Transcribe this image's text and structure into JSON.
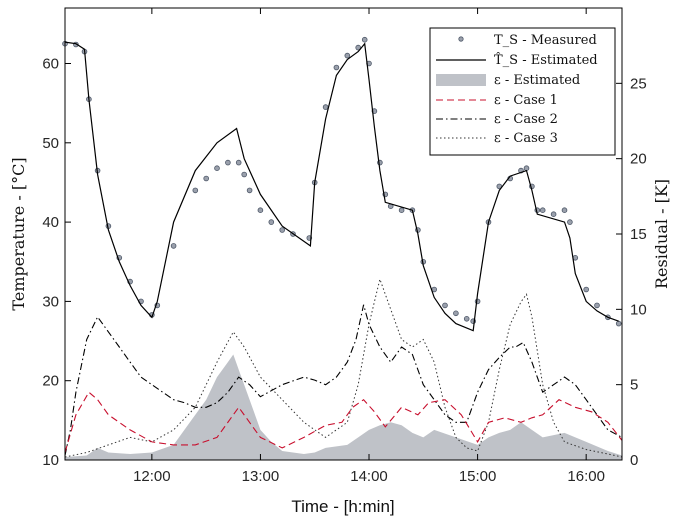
{
  "chart_data": {
    "type": "line",
    "xlabel": "Time - [h:min]",
    "ylabel_left": "Temperature - [°C]",
    "ylabel_right": "Residual - [K]",
    "x_unit": "hours",
    "xlim": [
      11.2,
      16.33
    ],
    "ylim_left": [
      10,
      67
    ],
    "ylim_right": [
      0,
      30
    ],
    "x_ticks": [
      {
        "value": 12,
        "label": "12:00"
      },
      {
        "value": 13,
        "label": "13:00"
      },
      {
        "value": 14,
        "label": "14:00"
      },
      {
        "value": 15,
        "label": "15:00"
      },
      {
        "value": 16,
        "label": "16:00"
      }
    ],
    "y_ticks_left": [
      10,
      20,
      30,
      40,
      50,
      60
    ],
    "y_ticks_right": [
      0,
      5,
      10,
      15,
      20,
      25
    ],
    "legend": [
      {
        "label": "T_S - Measured",
        "style": "dots"
      },
      {
        "label": "T̂_S - Estimated",
        "style": "solid"
      },
      {
        "label": "ε - Estimated",
        "style": "area"
      },
      {
        "label": "ε - Case 1",
        "style": "dashed-red"
      },
      {
        "label": "ε - Case 2",
        "style": "dashdot"
      },
      {
        "label": "ε - Case 3",
        "style": "dotted"
      }
    ],
    "series": [
      {
        "name": "T_S - Measured",
        "axis": "left",
        "x": [
          11.2,
          11.3,
          11.38,
          11.42,
          11.5,
          11.6,
          11.7,
          11.8,
          11.9,
          12.0,
          12.05,
          12.2,
          12.4,
          12.5,
          12.6,
          12.7,
          12.8,
          12.85,
          12.9,
          13.0,
          13.1,
          13.2,
          13.3,
          13.45,
          13.5,
          13.6,
          13.7,
          13.8,
          13.9,
          13.96,
          14.0,
          14.05,
          14.1,
          14.15,
          14.2,
          14.3,
          14.4,
          14.45,
          14.5,
          14.6,
          14.7,
          14.8,
          14.9,
          14.96,
          15.0,
          15.1,
          15.2,
          15.3,
          15.4,
          15.45,
          15.5,
          15.55,
          15.6,
          15.7,
          15.8,
          15.85,
          15.9,
          16.0,
          16.1,
          16.2,
          16.3
        ],
        "values": [
          62.5,
          62.4,
          61.5,
          55.5,
          46.5,
          39.5,
          35.5,
          32.5,
          30.0,
          28.3,
          29.5,
          37.0,
          44.0,
          45.5,
          46.8,
          47.5,
          47.5,
          46.0,
          44.0,
          41.5,
          40.0,
          39.0,
          38.5,
          38.0,
          45.0,
          54.5,
          59.5,
          61.0,
          62.0,
          63.0,
          60.0,
          54.0,
          47.5,
          43.5,
          42.0,
          41.5,
          41.5,
          39.0,
          35.0,
          31.5,
          29.5,
          28.5,
          27.8,
          27.5,
          30.0,
          40.0,
          44.5,
          45.5,
          46.5,
          46.8,
          44.5,
          41.5,
          41.5,
          41.0,
          41.5,
          40.0,
          35.5,
          31.5,
          29.5,
          28.0,
          27.2
        ]
      },
      {
        "name": "T̂_S - Estimated",
        "axis": "left",
        "x": [
          11.2,
          11.3,
          11.38,
          11.42,
          11.5,
          11.6,
          11.7,
          11.8,
          11.9,
          12.0,
          12.05,
          12.2,
          12.4,
          12.6,
          12.78,
          12.85,
          13.0,
          13.2,
          13.46,
          13.5,
          13.6,
          13.7,
          13.8,
          13.9,
          13.96,
          14.0,
          14.05,
          14.1,
          14.15,
          14.4,
          14.45,
          14.5,
          14.6,
          14.7,
          14.8,
          14.96,
          15.0,
          15.1,
          15.2,
          15.3,
          15.45,
          15.5,
          15.55,
          15.8,
          15.85,
          15.9,
          16.0,
          16.1,
          16.2,
          16.3
        ],
        "values": [
          62.7,
          62.5,
          61.8,
          55.5,
          46.0,
          39.0,
          35.0,
          32.0,
          29.5,
          28.0,
          30.0,
          40.0,
          46.5,
          50.0,
          51.8,
          48.0,
          43.5,
          39.5,
          37.0,
          45.0,
          53.0,
          58.5,
          60.5,
          61.5,
          62.5,
          58.0,
          52.0,
          46.5,
          42.5,
          41.5,
          38.5,
          34.5,
          30.5,
          28.5,
          27.2,
          26.3,
          31.0,
          40.0,
          44.0,
          45.8,
          46.5,
          44.0,
          41.0,
          40.0,
          38.0,
          33.5,
          30.0,
          28.8,
          28.0,
          27.5
        ]
      },
      {
        "name": "ε - Estimated",
        "axis": "right",
        "x": [
          11.2,
          11.4,
          11.5,
          11.6,
          11.8,
          12.0,
          12.2,
          12.35,
          12.5,
          12.6,
          12.7,
          12.75,
          12.8,
          12.9,
          13.0,
          13.1,
          13.2,
          13.4,
          13.5,
          13.6,
          13.8,
          13.9,
          14.0,
          14.1,
          14.2,
          14.3,
          14.4,
          14.5,
          14.6,
          14.8,
          15.0,
          15.1,
          15.2,
          15.3,
          15.4,
          15.5,
          15.6,
          15.8,
          16.0,
          16.2,
          16.33
        ],
        "values": [
          0.2,
          0.3,
          0.8,
          0.5,
          0.4,
          0.5,
          1.0,
          2.5,
          4.0,
          5.5,
          6.5,
          7.0,
          6.0,
          4.0,
          2.0,
          1.2,
          0.6,
          0.4,
          0.5,
          0.8,
          1.0,
          1.5,
          2.0,
          2.3,
          2.5,
          2.3,
          1.8,
          1.5,
          2.0,
          1.5,
          1.0,
          1.5,
          1.8,
          2.0,
          2.5,
          2.0,
          1.5,
          1.8,
          1.2,
          0.6,
          0.3
        ]
      },
      {
        "name": "ε - Case 1",
        "axis": "right",
        "x": [
          11.2,
          11.3,
          11.42,
          11.5,
          11.6,
          11.8,
          12.0,
          12.2,
          12.4,
          12.6,
          12.8,
          13.0,
          13.2,
          13.4,
          13.6,
          13.75,
          13.85,
          13.95,
          14.05,
          14.15,
          14.3,
          14.45,
          14.55,
          14.7,
          14.85,
          15.0,
          15.1,
          15.25,
          15.4,
          15.5,
          15.6,
          15.75,
          15.9,
          16.05,
          16.2,
          16.33
        ],
        "values": [
          0.5,
          3.0,
          4.5,
          4.0,
          3.0,
          2.0,
          1.2,
          1.0,
          1.0,
          1.5,
          3.5,
          1.5,
          0.8,
          1.5,
          2.3,
          2.5,
          3.5,
          4.0,
          3.2,
          2.2,
          3.5,
          3.0,
          3.8,
          4.0,
          3.0,
          1.2,
          2.5,
          2.8,
          2.5,
          2.8,
          3.0,
          4.0,
          3.5,
          3.2,
          2.5,
          1.3
        ]
      },
      {
        "name": "ε - Case 2",
        "axis": "right",
        "x": [
          11.2,
          11.25,
          11.3,
          11.4,
          11.5,
          11.6,
          11.7,
          11.8,
          11.9,
          12.0,
          12.1,
          12.2,
          12.3,
          12.4,
          12.5,
          12.6,
          12.7,
          12.8,
          12.9,
          13.0,
          13.2,
          13.4,
          13.5,
          13.6,
          13.7,
          13.8,
          13.88,
          13.95,
          14.0,
          14.1,
          14.2,
          14.3,
          14.4,
          14.5,
          14.6,
          14.7,
          14.8,
          14.9,
          15.0,
          15.1,
          15.2,
          15.3,
          15.35,
          15.42,
          15.5,
          15.6,
          15.7,
          15.8,
          15.9,
          16.0,
          16.1,
          16.2,
          16.33
        ],
        "values": [
          0.3,
          2.0,
          4.5,
          8.0,
          9.5,
          8.5,
          7.5,
          6.5,
          5.5,
          5.0,
          4.5,
          4.0,
          3.8,
          3.5,
          3.5,
          3.8,
          4.5,
          5.5,
          5.0,
          4.2,
          5.0,
          5.5,
          5.3,
          5.0,
          5.5,
          6.5,
          8.0,
          10.3,
          9.0,
          7.5,
          6.5,
          7.5,
          7.0,
          5.0,
          4.0,
          3.0,
          2.5,
          2.5,
          4.5,
          6.0,
          6.8,
          7.5,
          7.5,
          7.8,
          6.5,
          4.5,
          5.0,
          5.5,
          5.0,
          4.0,
          3.0,
          2.0,
          1.5
        ]
      },
      {
        "name": "ε - Case 3",
        "axis": "right",
        "x": [
          11.2,
          11.4,
          11.6,
          11.8,
          12.0,
          12.2,
          12.4,
          12.6,
          12.75,
          12.85,
          13.0,
          13.2,
          13.4,
          13.6,
          13.8,
          13.9,
          14.0,
          14.05,
          14.1,
          14.2,
          14.3,
          14.4,
          14.5,
          14.6,
          14.7,
          14.8,
          14.9,
          15.0,
          15.1,
          15.2,
          15.3,
          15.4,
          15.45,
          15.5,
          15.6,
          15.7,
          15.8,
          16.0,
          16.2,
          16.33
        ],
        "values": [
          0.2,
          0.5,
          1.0,
          1.5,
          1.2,
          2.0,
          3.5,
          6.5,
          8.5,
          7.5,
          5.5,
          4.0,
          2.5,
          1.5,
          2.5,
          5.0,
          9.0,
          10.5,
          12.0,
          10.0,
          8.0,
          7.5,
          8.0,
          6.5,
          3.5,
          1.5,
          0.8,
          0.6,
          2.5,
          6.0,
          9.0,
          10.5,
          11.0,
          9.5,
          5.0,
          2.5,
          1.2,
          0.7,
          0.4,
          0.2
        ]
      }
    ]
  }
}
